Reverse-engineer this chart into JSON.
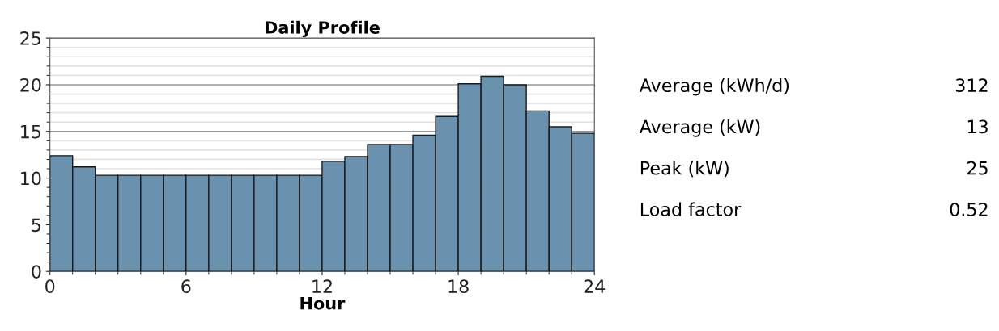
{
  "chart_data": [
    {
      "type": "histogram",
      "title": "Daily Profile",
      "xlabel": "Hour",
      "bins": [
        0,
        1,
        2,
        3,
        4,
        5,
        6,
        7,
        8,
        9,
        10,
        11,
        12,
        13,
        14,
        15,
        16,
        17,
        18,
        19,
        20,
        21,
        22,
        23,
        24
      ],
      "values": [
        12.4,
        11.2,
        10.3,
        10.3,
        10.3,
        10.3,
        10.3,
        10.3,
        10.3,
        10.3,
        10.3,
        10.3,
        11.8,
        12.3,
        13.6,
        13.6,
        14.6,
        16.6,
        20.1,
        20.9,
        20.0,
        17.2,
        15.5,
        14.8
      ],
      "color": "#6a91ad",
      "xlim": [
        0,
        24
      ],
      "xticks": [
        0,
        6,
        12,
        18,
        24
      ],
      "ylim": [
        0,
        25
      ],
      "yticks": [
        0,
        5,
        10,
        15,
        20,
        25
      ],
      "grid": "y",
      "legend": false
    },
    {
      "type": "other",
      "categories": [
        "Average (kWh/d)",
        "Average (kW)",
        "Peak (kW)",
        "Load factor"
      ],
      "values": [
        312,
        13,
        25,
        0.52
      ],
      "data_labels": true
    }
  ]
}
